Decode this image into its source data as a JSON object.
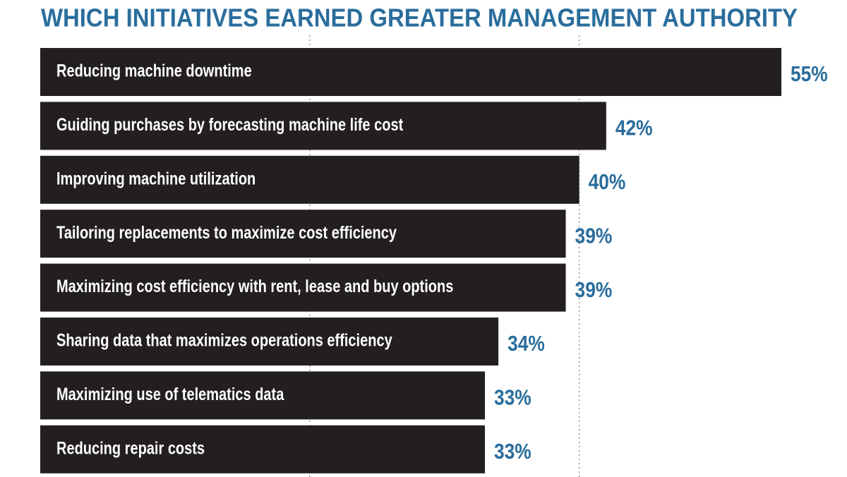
{
  "chart_data": {
    "type": "hbar",
    "title": "WHICH INITIATIVES EARNED GREATER MANAGEMENT AUTHORITY",
    "categories": [
      "Reducing machine downtime",
      "Guiding purchases by forecasting machine life cost",
      "Improving machine utilization",
      "Tailoring replacements to maximize cost efficiency",
      "Maximizing cost efficiency with rent, lease and buy options",
      "Sharing data that maximizes operations efficiency",
      "Maximizing use of telematics data",
      "Reducing repair costs"
    ],
    "values": [
      55,
      42,
      40,
      39,
      39,
      34,
      33,
      33
    ],
    "value_labels": [
      "55%",
      "42%",
      "40%",
      "39%",
      "39%",
      "34%",
      "33%",
      "33%"
    ],
    "color": "#231f20",
    "label_color": "#2a6d9c",
    "xlim": [
      0,
      55
    ],
    "xticks": [
      20,
      40
    ],
    "grid": true
  }
}
